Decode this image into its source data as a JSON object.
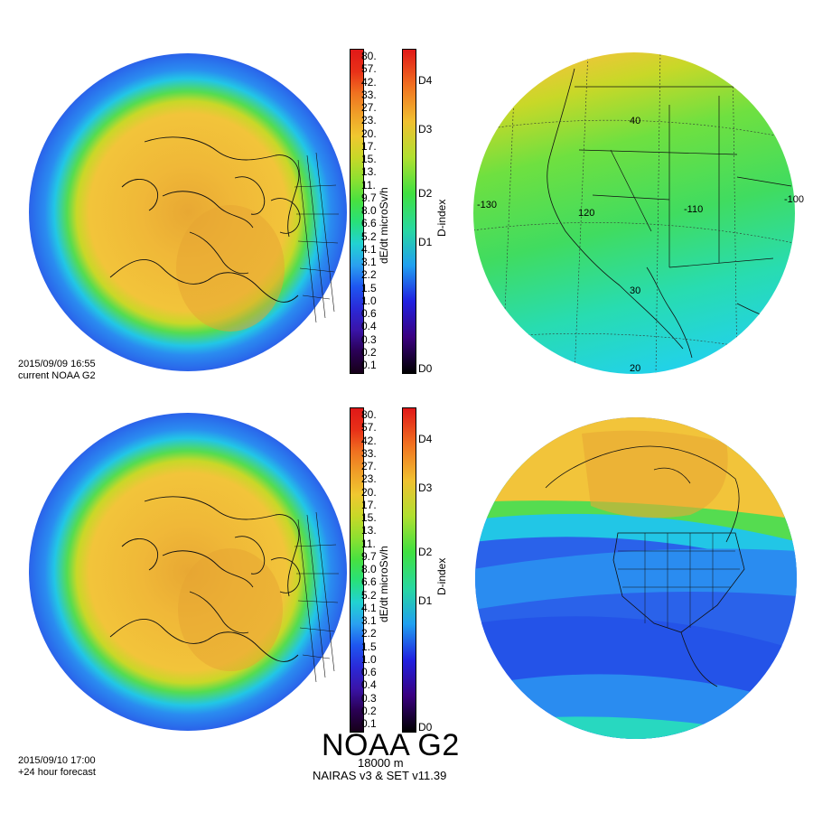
{
  "colors": {
    "ramp": [
      "#160018",
      "#2a0055",
      "#3a14a8",
      "#2a2ad8",
      "#1e56f0",
      "#2aa0f0",
      "#22d2d2",
      "#28e07a",
      "#48e040",
      "#8ee030",
      "#c8d828",
      "#f0c830",
      "#f0a028",
      "#f07020",
      "#e83018",
      "#e01818"
    ],
    "dindex_ramp": [
      "#000000",
      "#3a0080",
      "#2020e0",
      "#20a0f0",
      "#28d8a0",
      "#40e040",
      "#b0e030",
      "#f0c030",
      "#f07020",
      "#e01818"
    ],
    "globe_outer": "#2a62ea",
    "globe_mid": "#22c6e6",
    "globe_green": "#55dc50",
    "globe_inner": "#f2c43a",
    "globe_core": "#e8a833"
  },
  "colorbar": {
    "ticks": [
      "80.",
      "57.",
      "42.",
      "33.",
      "27.",
      "23.",
      "20.",
      "17.",
      "15.",
      "13.",
      "11.",
      "9.7",
      "8.0",
      "6.6",
      "5.2",
      "4.1",
      "3.1",
      "2.2",
      "1.5",
      "1.0",
      "0.6",
      "0.4",
      "0.3",
      "0.2",
      "0.1"
    ],
    "title": "dE/dt microSv/h"
  },
  "dindex": {
    "ticks": [
      "D4",
      "D3",
      "D2",
      "D1",
      "D0"
    ],
    "title": "D-index"
  },
  "panels": {
    "top": {
      "timestamp": "2015/09/09 16:55",
      "caption": "current NOAA G2"
    },
    "bottom": {
      "timestamp": "2015/09/10 17:00",
      "caption": "+24 hour forecast"
    }
  },
  "map_labels": {
    "lon": [
      "-130",
      "120",
      "-110",
      "-100"
    ],
    "lat": [
      "40",
      "30",
      "20"
    ]
  },
  "footer": {
    "title": "NOAA G2",
    "altitude": "18000 m",
    "model": "NAIRAS v3 & SET v11.39"
  }
}
